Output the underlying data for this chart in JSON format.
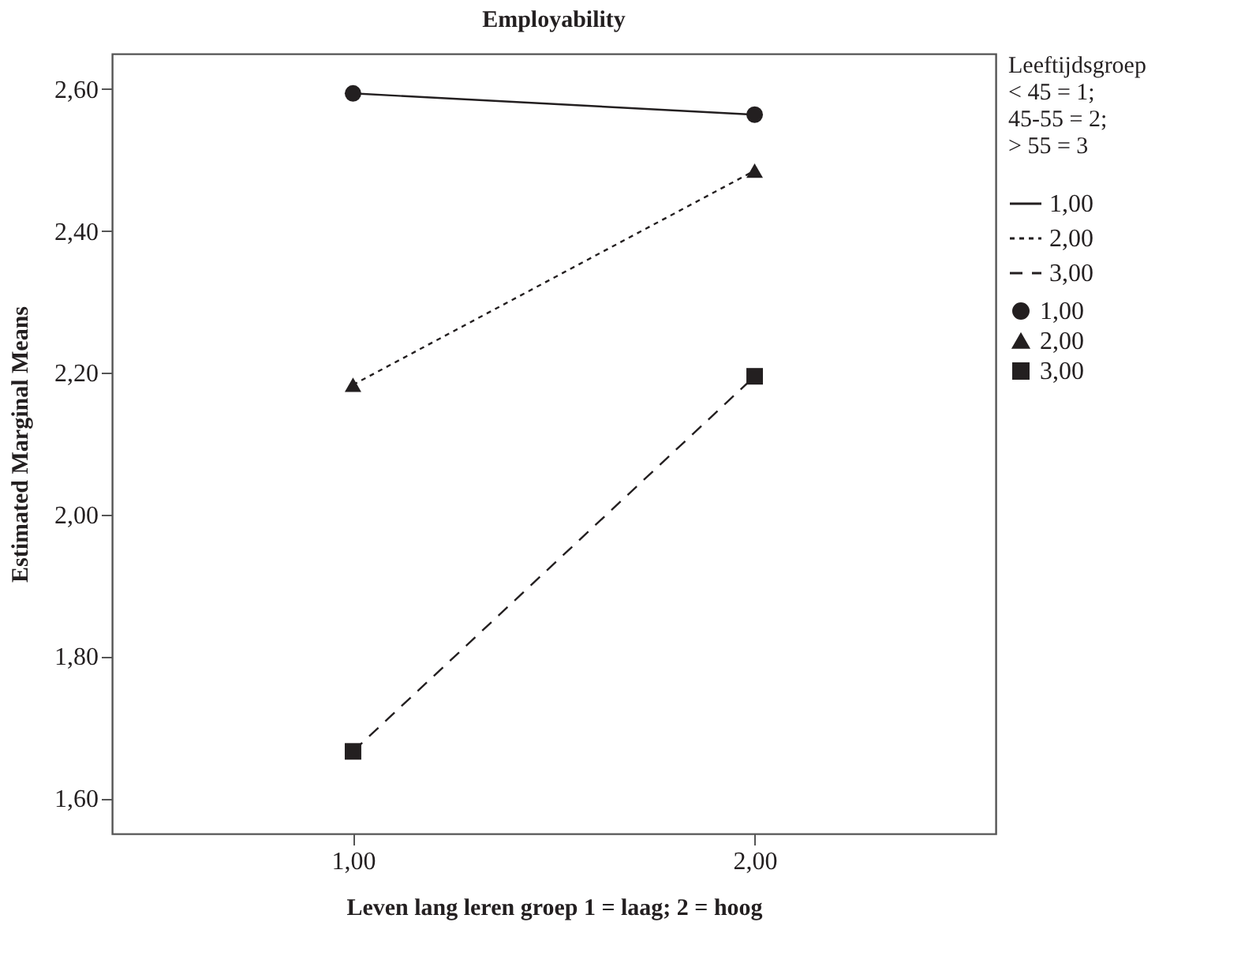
{
  "chart_data": {
    "type": "line",
    "title": "Employability",
    "xlabel": "Leven lang leren groep 1 = laag; 2 = hoog",
    "ylabel": "Estimated Marginal Means",
    "legend_title": "Leeftijdsgroep\n< 45 = 1;\n45-55 = 2;\n> 55 = 3",
    "x": [
      1,
      2
    ],
    "xlim": [
      0.4,
      2.6
    ],
    "xticks": [
      {
        "value": 1,
        "label": "1,00"
      },
      {
        "value": 2,
        "label": "2,00"
      }
    ],
    "ylim": [
      1.55,
      2.65
    ],
    "yticks": [
      {
        "value": 1.6,
        "label": "1,60"
      },
      {
        "value": 1.8,
        "label": "1,80"
      },
      {
        "value": 2.0,
        "label": "2,00"
      },
      {
        "value": 2.2,
        "label": "2,20"
      },
      {
        "value": 2.4,
        "label": "2,40"
      },
      {
        "value": 2.6,
        "label": "2,60"
      }
    ],
    "grid": false,
    "legend": "right",
    "series": [
      {
        "name": "1,00",
        "color": "#231f20",
        "values": [
          2.594,
          2.564
        ],
        "marker": "circle",
        "line_style": "solid"
      },
      {
        "name": "2,00",
        "color": "#231f20",
        "values": [
          2.183,
          2.485
        ],
        "marker": "triangle",
        "line_style": "dotted"
      },
      {
        "name": "3,00",
        "color": "#231f20",
        "values": [
          1.666,
          2.195
        ],
        "marker": "square",
        "line_style": "dashed"
      }
    ]
  }
}
